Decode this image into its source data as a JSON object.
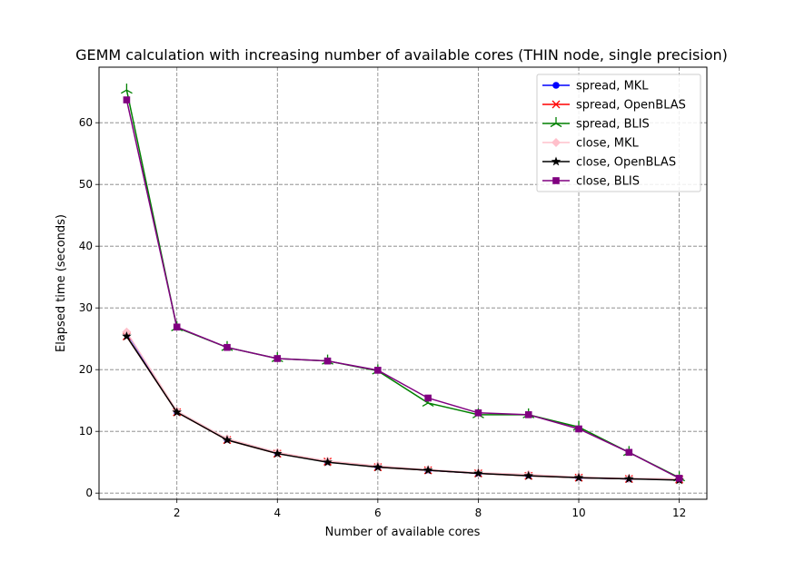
{
  "chart_data": {
    "type": "line",
    "title": "GEMM calculation with increasing number of available cores (THIN node, single precision)",
    "xlabel": "Number of available cores",
    "ylabel": "Elapsed time (seconds)",
    "xlim": [
      0.45,
      12.55
    ],
    "ylim": [
      -1,
      69
    ],
    "xticks": [
      2,
      4,
      6,
      8,
      10,
      12
    ],
    "yticks": [
      0,
      10,
      20,
      30,
      40,
      50,
      60
    ],
    "grid": true,
    "legend_position": "top-right",
    "x": [
      1,
      2,
      3,
      4,
      5,
      6,
      7,
      8,
      9,
      10,
      11,
      12
    ],
    "series": [
      {
        "name": "spread, MKL",
        "color": "#0000ff",
        "marker": "circle",
        "values": [
          26.0,
          13.2,
          8.7,
          6.5,
          5.1,
          4.3,
          3.7,
          3.2,
          2.9,
          2.5,
          2.3,
          2.2
        ]
      },
      {
        "name": "spread, OpenBLAS",
        "color": "#ff0000",
        "marker": "x",
        "values": [
          25.4,
          13.1,
          8.6,
          6.4,
          5.1,
          4.2,
          3.7,
          3.2,
          2.8,
          2.5,
          2.3,
          2.2
        ]
      },
      {
        "name": "spread, BLIS",
        "color": "#008000",
        "marker": "tri",
        "values": [
          65.3,
          26.8,
          23.6,
          21.8,
          21.4,
          19.8,
          14.6,
          12.7,
          12.7,
          10.7,
          6.6,
          2.5
        ]
      },
      {
        "name": "close, MKL",
        "color": "#ffc0cb",
        "marker": "diamond",
        "values": [
          26.1,
          13.3,
          8.8,
          6.6,
          5.2,
          4.4,
          3.8,
          3.3,
          3.0,
          2.6,
          2.4,
          2.3
        ]
      },
      {
        "name": "close, OpenBLAS",
        "color": "#000000",
        "marker": "star",
        "values": [
          25.4,
          13.1,
          8.6,
          6.4,
          5.0,
          4.2,
          3.7,
          3.2,
          2.8,
          2.5,
          2.3,
          2.1
        ]
      },
      {
        "name": "close, BLIS",
        "color": "#800080",
        "marker": "square",
        "values": [
          63.7,
          26.9,
          23.6,
          21.8,
          21.4,
          19.9,
          15.4,
          13.0,
          12.7,
          10.4,
          6.6,
          2.4
        ]
      }
    ]
  }
}
